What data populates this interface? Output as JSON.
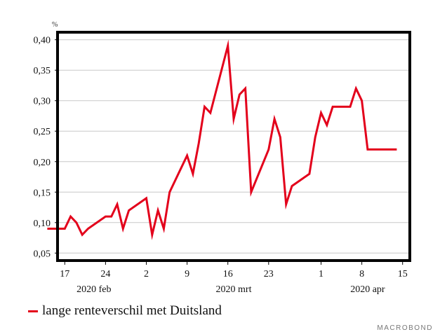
{
  "chart_data": {
    "type": "line",
    "unit": "%",
    "ylim": [
      0.04,
      0.41
    ],
    "yticks": [
      0.05,
      0.1,
      0.15,
      0.2,
      0.25,
      0.3,
      0.35,
      0.4
    ],
    "ytick_labels": [
      "0,05",
      "0,10",
      "0,15",
      "0,20",
      "0,25",
      "0,30",
      "0,35",
      "0,40"
    ],
    "x_start": "2020-02-16",
    "x_end": "2020-04-16",
    "xticks": [
      {
        "date": "2020-02-17",
        "label": "17"
      },
      {
        "date": "2020-02-24",
        "label": "24"
      },
      {
        "date": "2020-03-02",
        "label": "2"
      },
      {
        "date": "2020-03-09",
        "label": "9"
      },
      {
        "date": "2020-03-16",
        "label": "16"
      },
      {
        "date": "2020-03-23",
        "label": "23"
      },
      {
        "date": "2020-04-01",
        "label": "1"
      },
      {
        "date": "2020-04-08",
        "label": "8"
      },
      {
        "date": "2020-04-15",
        "label": "15"
      }
    ],
    "month_labels": [
      {
        "date": "2020-02-22",
        "label": "2020 feb"
      },
      {
        "date": "2020-03-17",
        "label": "2020 mrt"
      },
      {
        "date": "2020-04-09",
        "label": "2020 apr"
      }
    ],
    "grid": true,
    "legend_position": "bottom-left",
    "series": [
      {
        "name": "lange renteverschil met Duitsland",
        "color": "#e3001b",
        "points": [
          [
            "2020-02-14",
            0.09
          ],
          [
            "2020-02-17",
            0.09
          ],
          [
            "2020-02-18",
            0.11
          ],
          [
            "2020-02-19",
            0.1
          ],
          [
            "2020-02-20",
            0.08
          ],
          [
            "2020-02-21",
            0.09
          ],
          [
            "2020-02-24",
            0.11
          ],
          [
            "2020-02-25",
            0.11
          ],
          [
            "2020-02-26",
            0.13
          ],
          [
            "2020-02-27",
            0.09
          ],
          [
            "2020-02-28",
            0.12
          ],
          [
            "2020-03-02",
            0.14
          ],
          [
            "2020-03-03",
            0.08
          ],
          [
            "2020-03-04",
            0.12
          ],
          [
            "2020-03-05",
            0.09
          ],
          [
            "2020-03-06",
            0.15
          ],
          [
            "2020-03-09",
            0.21
          ],
          [
            "2020-03-10",
            0.18
          ],
          [
            "2020-03-11",
            0.23
          ],
          [
            "2020-03-12",
            0.29
          ],
          [
            "2020-03-13",
            0.28
          ],
          [
            "2020-03-16",
            0.39
          ],
          [
            "2020-03-17",
            0.27
          ],
          [
            "2020-03-18",
            0.31
          ],
          [
            "2020-03-19",
            0.32
          ],
          [
            "2020-03-20",
            0.15
          ],
          [
            "2020-03-23",
            0.22
          ],
          [
            "2020-03-24",
            0.27
          ],
          [
            "2020-03-25",
            0.24
          ],
          [
            "2020-03-26",
            0.13
          ],
          [
            "2020-03-27",
            0.16
          ],
          [
            "2020-03-30",
            0.18
          ],
          [
            "2020-03-31",
            0.24
          ],
          [
            "2020-04-01",
            0.28
          ],
          [
            "2020-04-02",
            0.26
          ],
          [
            "2020-04-03",
            0.29
          ],
          [
            "2020-04-06",
            0.29
          ],
          [
            "2020-04-07",
            0.32
          ],
          [
            "2020-04-08",
            0.3
          ],
          [
            "2020-04-09",
            0.22
          ],
          [
            "2020-04-10",
            0.22
          ],
          [
            "2020-04-14",
            0.22
          ]
        ]
      }
    ]
  },
  "legend": {
    "label": "lange renteverschil met Duitsland",
    "color": "#e3001b"
  },
  "brand": "MACROBOND"
}
